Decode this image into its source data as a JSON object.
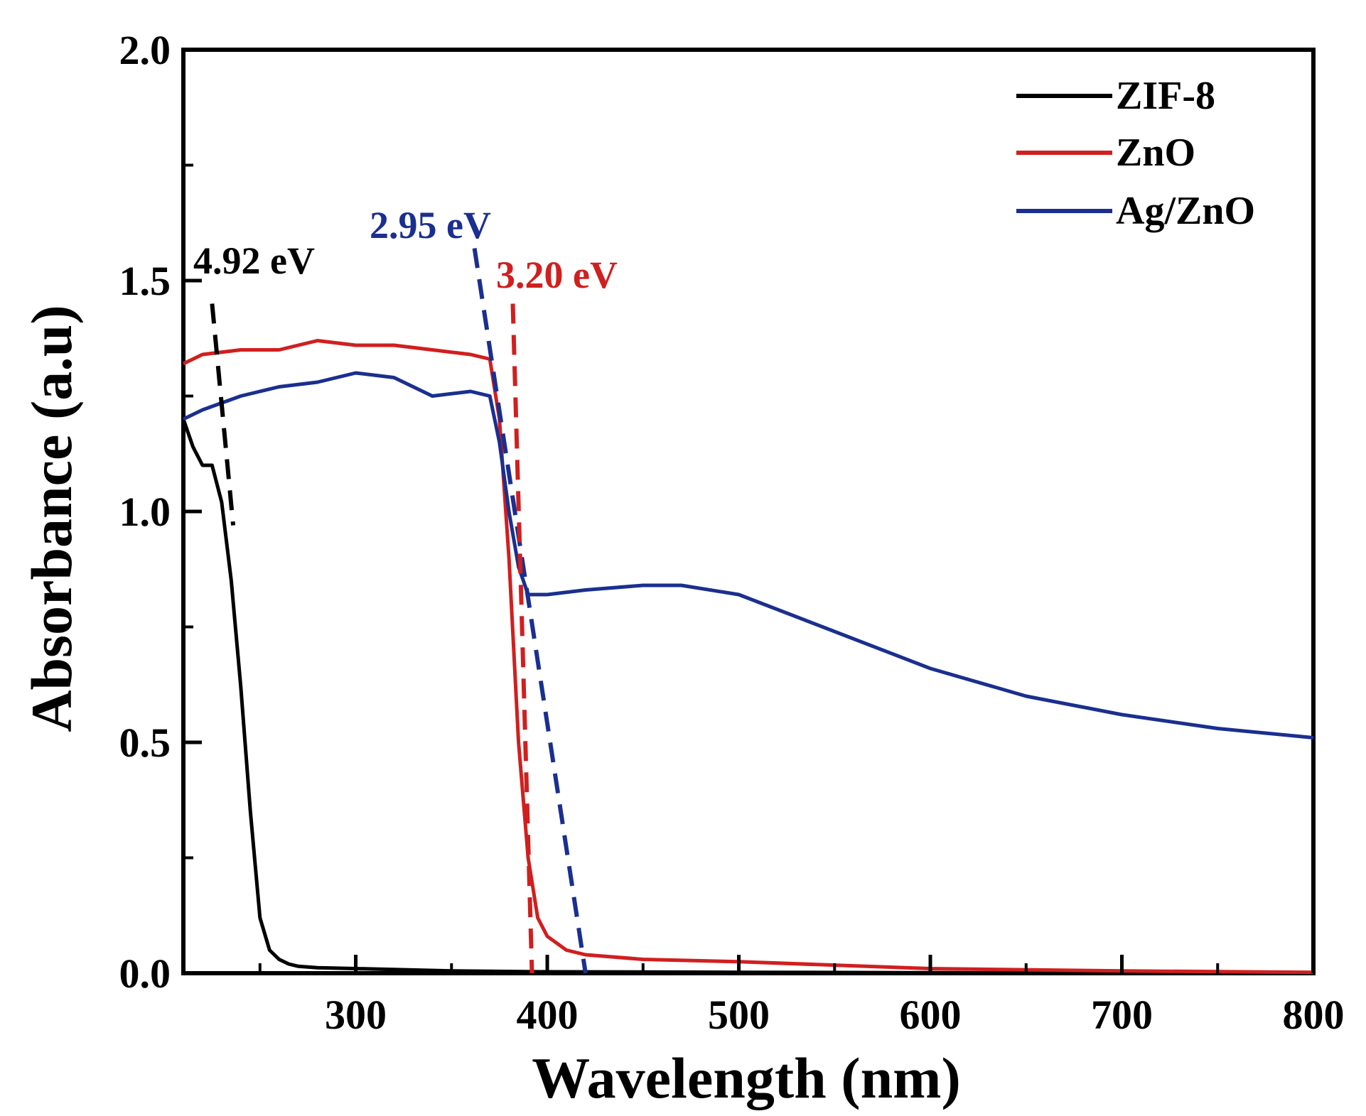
{
  "chart_data": {
    "type": "line",
    "title": "",
    "xlabel": "Wavelength (nm)",
    "ylabel": "Absorbance (a.u)",
    "xlim": [
      210,
      800
    ],
    "ylim": [
      0.0,
      2.0
    ],
    "x_ticks": [
      300,
      400,
      500,
      600,
      700,
      800
    ],
    "y_ticks": [
      0.0,
      0.5,
      1.0,
      1.5,
      2.0
    ],
    "x_tick_labels": [
      "300",
      "400",
      "500",
      "600",
      "700",
      "800"
    ],
    "y_tick_labels": [
      "0.0",
      "0.5",
      "1.0",
      "1.5",
      "2.0"
    ],
    "grid": false,
    "legend_position": "top-right",
    "series": [
      {
        "name": "ZIF-8",
        "color": "#000000",
        "x": [
          210,
          215,
          220,
          225,
          230,
          235,
          240,
          245,
          250,
          255,
          260,
          265,
          270,
          280,
          300,
          350,
          400,
          500,
          600,
          700,
          800
        ],
        "y": [
          1.2,
          1.14,
          1.1,
          1.1,
          1.02,
          0.85,
          0.62,
          0.35,
          0.12,
          0.05,
          0.03,
          0.02,
          0.015,
          0.012,
          0.01,
          0.005,
          0.003,
          0.002,
          0.001,
          0.0,
          0.0
        ]
      },
      {
        "name": "ZnO",
        "color": "#d01f1f",
        "x": [
          210,
          220,
          240,
          260,
          280,
          300,
          320,
          340,
          360,
          370,
          375,
          380,
          385,
          390,
          395,
          400,
          410,
          420,
          450,
          500,
          600,
          700,
          800
        ],
        "y": [
          1.32,
          1.34,
          1.35,
          1.35,
          1.37,
          1.36,
          1.36,
          1.35,
          1.34,
          1.33,
          1.2,
          0.9,
          0.5,
          0.25,
          0.12,
          0.08,
          0.05,
          0.04,
          0.03,
          0.025,
          0.01,
          0.005,
          0.002
        ]
      },
      {
        "name": "Ag/ZnO",
        "color": "#1a2f8f",
        "x": [
          210,
          220,
          240,
          260,
          280,
          300,
          320,
          340,
          360,
          370,
          375,
          380,
          385,
          390,
          400,
          420,
          450,
          470,
          500,
          550,
          600,
          650,
          700,
          750,
          800
        ],
        "y": [
          1.2,
          1.22,
          1.25,
          1.27,
          1.28,
          1.3,
          1.29,
          1.25,
          1.26,
          1.25,
          1.15,
          1.0,
          0.88,
          0.82,
          0.82,
          0.83,
          0.84,
          0.84,
          0.82,
          0.74,
          0.66,
          0.6,
          0.56,
          0.53,
          0.51
        ]
      }
    ],
    "annotations": [
      {
        "text": "4.92 eV",
        "color": "#000000",
        "line": {
          "x": [
            225,
            236
          ],
          "y": [
            1.45,
            0.97
          ]
        }
      },
      {
        "text": "2.95 eV",
        "color": "#1a2f8f",
        "line": {
          "x": [
            362,
            420
          ],
          "y": [
            1.57,
            0.0
          ]
        }
      },
      {
        "text": "3.20 eV",
        "color": "#d01f1f",
        "line": {
          "x": [
            382,
            392
          ],
          "y": [
            1.45,
            0.0
          ]
        }
      }
    ]
  }
}
